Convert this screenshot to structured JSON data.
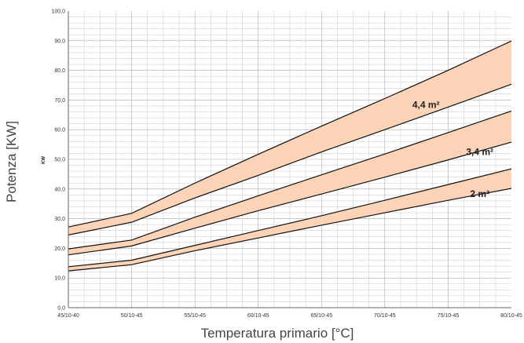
{
  "chart_data": {
    "type": "area",
    "title": "",
    "xlabel": "Temperatura primario [°C]",
    "ylabel": "Potenza [KW]",
    "ylabel_inner": "KW",
    "categories": [
      "45/10-40",
      "50/10-45",
      "55/10-45",
      "60/10-45",
      "65/10-45",
      "70/10-45",
      "75/10-45",
      "80/10-45"
    ],
    "ylim": [
      0,
      100
    ],
    "y_ticks": [
      "0,0",
      "10,0",
      "20,0",
      "30,0",
      "40,0",
      "50,0",
      "60,0",
      "70,0",
      "80,0",
      "90,0",
      "100,0"
    ],
    "grid": true,
    "fill_color": "#fbd3b6",
    "series": [
      {
        "name": "2 m²",
        "upper": [
          13.8,
          16.0,
          21.0,
          26.0,
          31.0,
          36.2,
          41.5,
          46.8
        ],
        "lower": [
          12.4,
          14.5,
          19.2,
          23.5,
          27.8,
          32.0,
          36.2,
          40.2
        ],
        "label_at": [
          6.5,
          37.3
        ]
      },
      {
        "name": "3,4 m²",
        "upper": [
          19.8,
          22.8,
          30.5,
          37.7,
          44.8,
          51.8,
          59.0,
          66.3
        ],
        "lower": [
          17.8,
          20.8,
          26.8,
          32.7,
          38.3,
          44.0,
          49.8,
          55.8
        ],
        "label_at": [
          6.5,
          51.5
        ]
      },
      {
        "name": "4,4 m²",
        "upper": [
          27.2,
          31.8,
          42.0,
          51.7,
          61.2,
          70.5,
          80.0,
          89.9
        ],
        "lower": [
          24.5,
          28.8,
          37.0,
          44.6,
          52.5,
          60.0,
          67.6,
          75.3
        ],
        "label_at": [
          5.65,
          67.3
        ]
      }
    ]
  }
}
